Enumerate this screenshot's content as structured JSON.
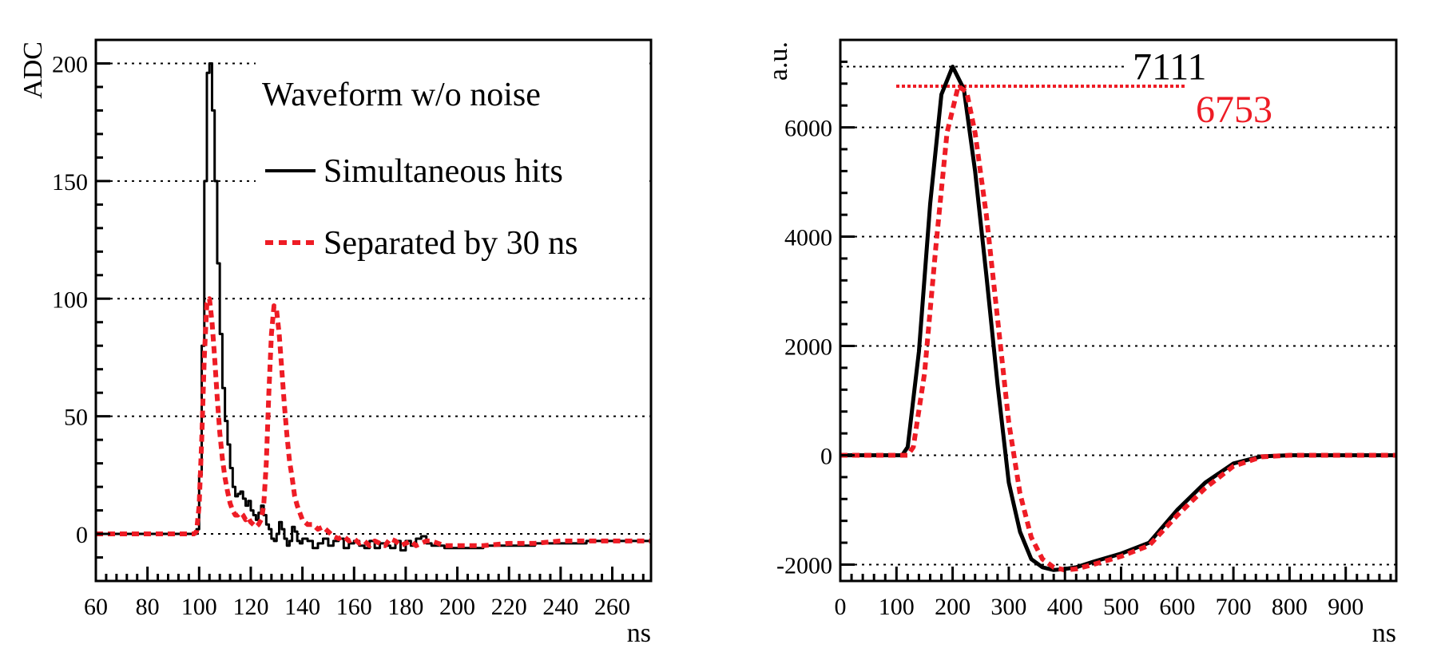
{
  "chart_data": [
    {
      "type": "line",
      "title": "Waveform w/o noise",
      "xlabel": "ns",
      "ylabel": "ADC",
      "xlim": [
        60,
        275
      ],
      "ylim": [
        -20,
        210
      ],
      "xticks": [
        60,
        80,
        100,
        120,
        140,
        160,
        180,
        200,
        220,
        240,
        260
      ],
      "yticks": [
        0,
        50,
        100,
        150,
        200
      ],
      "grid": "horizontal dotted",
      "legend_position": "top-right",
      "series": [
        {
          "name": "Simultaneous hits",
          "color": "#000000",
          "style": "solid-step",
          "x": [
            60,
            98,
            99,
            100,
            101,
            102,
            103,
            104,
            105,
            106,
            107,
            108,
            109,
            110,
            111,
            112,
            113,
            114,
            115,
            116,
            117,
            118,
            119,
            120,
            121,
            122,
            123,
            124,
            125,
            126,
            127,
            128,
            129,
            130,
            131,
            132,
            133,
            134,
            135,
            136,
            137,
            138,
            139,
            140,
            142,
            144,
            146,
            148,
            150,
            152,
            154,
            156,
            158,
            160,
            162,
            164,
            166,
            168,
            170,
            172,
            174,
            176,
            178,
            180,
            182,
            184,
            186,
            188,
            190,
            195,
            200,
            210,
            220,
            230,
            240,
            250,
            260,
            275
          ],
          "y": [
            0,
            0,
            2,
            25,
            80,
            150,
            196,
            200,
            180,
            150,
            115,
            85,
            62,
            48,
            38,
            28,
            20,
            16,
            17,
            18,
            15,
            12,
            14,
            10,
            8,
            6,
            9,
            12,
            8,
            4,
            2,
            -2,
            -3,
            0,
            5,
            2,
            -2,
            -5,
            -3,
            3,
            1,
            -3,
            -4,
            -2,
            -3,
            -6,
            -4,
            -2,
            -5,
            -3,
            -2,
            -6,
            -4,
            -3,
            -5,
            -6,
            -3,
            -6,
            -4,
            -5,
            -6,
            -3,
            -7,
            -3,
            -5,
            -2,
            -1,
            -4,
            -5,
            -6,
            -6,
            -5,
            -5,
            -4,
            -4,
            -3,
            -3,
            -3
          ]
        },
        {
          "name": "Separated by 30 ns",
          "color": "#ee1c25",
          "style": "dashed",
          "x": [
            60,
            98,
            99,
            100,
            101,
            102,
            103,
            104,
            105,
            106,
            107,
            108,
            109,
            110,
            111,
            112,
            113,
            114,
            115,
            116,
            117,
            118,
            119,
            120,
            121,
            122,
            123,
            124,
            125,
            126,
            127,
            128,
            129,
            130,
            131,
            132,
            133,
            134,
            135,
            136,
            137,
            138,
            139,
            140,
            142,
            144,
            146,
            148,
            150,
            152,
            154,
            156,
            158,
            160,
            162,
            164,
            166,
            168,
            170,
            172,
            174,
            176,
            178,
            180,
            182,
            184,
            186,
            188,
            190,
            195,
            200,
            210,
            220,
            230,
            240,
            250,
            260,
            275
          ],
          "y": [
            0,
            0,
            1,
            12,
            40,
            75,
            98,
            100,
            90,
            75,
            58,
            43,
            32,
            24,
            18,
            13,
            10,
            8,
            8,
            9,
            8,
            6,
            7,
            5,
            4,
            3,
            4,
            6,
            12,
            30,
            60,
            85,
            97,
            95,
            85,
            70,
            55,
            42,
            31,
            24,
            16,
            12,
            9,
            6,
            4,
            4,
            2,
            3,
            1,
            -1,
            -2,
            -1,
            -3,
            -2,
            -4,
            -3,
            -5,
            -3,
            -4,
            -5,
            -2,
            -3,
            -5,
            -4,
            -3,
            -5,
            -4,
            -3,
            -3,
            -5,
            -5,
            -5,
            -4,
            -4,
            -3,
            -3,
            -3,
            -3
          ]
        }
      ]
    },
    {
      "type": "line",
      "title": "",
      "xlabel": "ns",
      "ylabel": "a.u.",
      "xlim": [
        0,
        990
      ],
      "ylim": [
        -2300,
        7600
      ],
      "xticks": [
        0,
        100,
        200,
        300,
        400,
        500,
        600,
        700,
        800,
        900
      ],
      "yticks": [
        -2000,
        0,
        2000,
        4000,
        6000
      ],
      "grid": "horizontal dotted",
      "series": [
        {
          "name": "black",
          "color": "#000000",
          "style": "solid",
          "x": [
            0,
            110,
            120,
            140,
            160,
            180,
            200,
            220,
            240,
            260,
            280,
            300,
            320,
            340,
            360,
            380,
            400,
            420,
            450,
            500,
            550,
            600,
            650,
            700,
            750,
            800,
            850,
            900,
            990
          ],
          "y": [
            0,
            0,
            150,
            1900,
            4600,
            6600,
            7111,
            6700,
            5200,
            3300,
            1300,
            -500,
            -1400,
            -1900,
            -2050,
            -2100,
            -2080,
            -2050,
            -1950,
            -1800,
            -1600,
            -1000,
            -500,
            -150,
            -20,
            0,
            0,
            0,
            0
          ]
        },
        {
          "name": "red",
          "color": "#ee1c25",
          "style": "dashed",
          "x": [
            0,
            120,
            130,
            150,
            170,
            190,
            210,
            225,
            240,
            260,
            280,
            300,
            320,
            340,
            360,
            380,
            400,
            420,
            450,
            500,
            550,
            600,
            650,
            700,
            750,
            800,
            850,
            900,
            990
          ],
          "y": [
            0,
            0,
            150,
            1500,
            3800,
            5900,
            6753,
            6650,
            5900,
            4400,
            2500,
            600,
            -700,
            -1500,
            -1900,
            -2050,
            -2100,
            -2080,
            -2000,
            -1850,
            -1650,
            -1100,
            -600,
            -200,
            -30,
            0,
            0,
            0,
            0
          ]
        }
      ],
      "annotations": [
        {
          "text": "7111",
          "value": 7111,
          "color": "#000000"
        },
        {
          "text": "6753",
          "value": 6753,
          "color": "#ee1c25"
        }
      ]
    }
  ]
}
